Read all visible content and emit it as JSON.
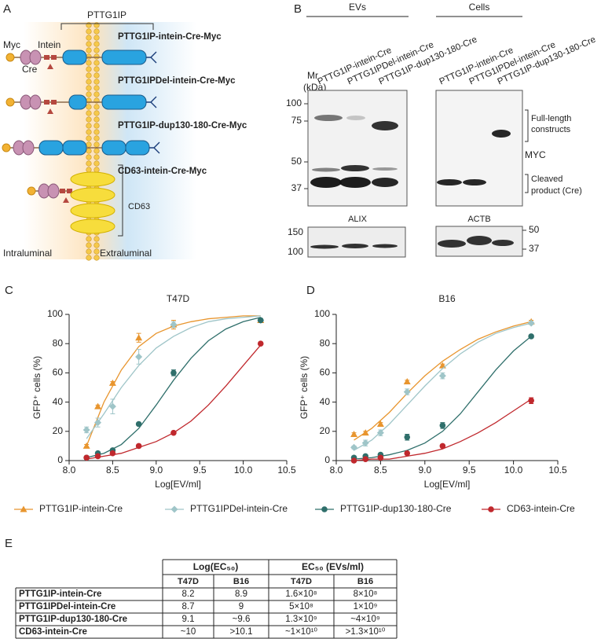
{
  "panel_labels": [
    "A",
    "B",
    "C",
    "D",
    "E"
  ],
  "diagram": {
    "title": "PTTG1IP",
    "tag_myc": "Myc",
    "tag_intein": "Intein",
    "tag_cre": "Cre",
    "constructs": [
      {
        "label": "PTTG1IP-intein-Cre-Myc",
        "color": "#e8952e"
      },
      {
        "label": "PTTG1IPDel-intein-Cre-Myc",
        "color": "#9fc5c8"
      },
      {
        "label": "PTTG1IP-dup130-180-Cre-Myc",
        "color": "#2f6f6b"
      },
      {
        "label": "CD63-intein-Cre-Myc",
        "color": "#c0282d"
      }
    ],
    "cd63": "CD63",
    "intraluminal": "Intraluminal",
    "extraluminal": "Extraluminal"
  },
  "blot": {
    "evs": {
      "title": "EVs",
      "lanes": [
        {
          "label": "PTTG1IP-intein-Cre",
          "color": "#e8952e"
        },
        {
          "label": "PTTG1IPDel-intein-Cre",
          "color": "#9fc5c8"
        },
        {
          "label": "PTTG1IP-dup130-180-Cre",
          "color": "#2f6f6b"
        }
      ]
    },
    "cells": {
      "title": "Cells",
      "lanes": [
        {
          "label": "PTTG1IP-intein-Cre",
          "color": "#e8952e"
        },
        {
          "label": "PTTG1IPDel-intein-Cre",
          "color": "#9fc5c8"
        },
        {
          "label": "PTTG1IP-dup130-180-Cre",
          "color": "#2f6f6b"
        }
      ]
    },
    "mr_label": [
      "Mr",
      "(kDa)"
    ],
    "markers": [
      100,
      75,
      50,
      37
    ],
    "full_length": [
      "Full-length",
      "constructs"
    ],
    "myc": "MYC",
    "cleaved": [
      "Cleaved",
      "product (Cre)"
    ],
    "alix": "ALIX",
    "alix_markers": [
      150,
      100
    ],
    "actb": "ACTB",
    "actb_markers": [
      50,
      37
    ]
  },
  "chart_data": [
    {
      "type": "scatter",
      "title": "T47D",
      "x_label": "Log[EV/ml]",
      "y_label": "GFP⁺ cells (%)",
      "x": [
        8.2,
        8.33,
        8.5,
        8.8,
        9.2,
        10.2
      ],
      "fit_x": [
        8.2,
        8.4,
        8.6,
        8.8,
        9.0,
        9.2,
        9.4,
        9.6,
        9.8,
        10.0,
        10.2
      ],
      "xlim": [
        8.0,
        10.5
      ],
      "xticks": [
        {
          "value": 8,
          "label": "8.0"
        },
        8.5,
        {
          "value": 9,
          "label": "9.0"
        },
        9.5,
        {
          "value": 10,
          "label": "10.0"
        },
        10.5
      ],
      "ylim": [
        0,
        100
      ],
      "yticks": [
        0,
        20,
        40,
        60,
        80,
        100
      ],
      "series": [
        {
          "name": "PTTG1IP-intein-Cre",
          "color": "#e8952e",
          "marker": "triangle",
          "values": [
            10,
            37,
            53,
            84,
            93,
            96
          ],
          "errors": [
            1,
            1,
            1,
            3,
            3,
            1
          ],
          "fit": [
            10,
            40,
            62,
            78,
            87,
            92,
            95,
            97,
            98,
            99,
            99
          ]
        },
        {
          "name": "PTTG1IPDel-intein-Cre",
          "color": "#9fc5c8",
          "marker": "diamond",
          "values": [
            21,
            26,
            37,
            71,
            93,
            96
          ],
          "errors": [
            2,
            3,
            5,
            5,
            2,
            1
          ],
          "fit": [
            15,
            32,
            50,
            65,
            77,
            85,
            91,
            95,
            97,
            98,
            99
          ]
        },
        {
          "name": "PTTG1IP-dup130-180-Cre",
          "color": "#2f6f6b",
          "marker": "circle",
          "values": [
            2,
            5,
            7,
            25,
            60,
            96
          ],
          "errors": [
            1,
            1,
            1,
            1,
            2,
            1
          ],
          "fit": [
            2,
            5,
            11,
            22,
            38,
            55,
            70,
            82,
            90,
            95,
            98
          ]
        },
        {
          "name": "CD63-intein-Cre",
          "color": "#c0282d",
          "marker": "circle",
          "values": [
            2,
            3,
            5,
            10,
            19,
            80
          ],
          "errors": [
            1,
            1,
            1,
            1,
            1,
            1
          ],
          "fit": [
            1,
            3,
            5,
            9,
            13,
            19,
            27,
            38,
            51,
            65,
            79
          ]
        }
      ]
    },
    {
      "type": "scatter",
      "title": "B16",
      "x_label": "Log[EV/ml]",
      "y_label": "GFP⁺ cells (%)",
      "x": [
        8.2,
        8.33,
        8.5,
        8.8,
        9.2,
        10.2
      ],
      "fit_x": [
        8.2,
        8.4,
        8.6,
        8.8,
        9.0,
        9.2,
        9.4,
        9.6,
        9.8,
        10.0,
        10.2
      ],
      "xlim": [
        8.0,
        10.5
      ],
      "xticks": [
        {
          "value": 8,
          "label": "8.0"
        },
        8.5,
        {
          "value": 9,
          "label": "9.0"
        },
        9.5,
        {
          "value": 10,
          "label": "10.0"
        },
        10.5
      ],
      "ylim": [
        0,
        100
      ],
      "yticks": [
        0,
        20,
        40,
        60,
        80,
        100
      ],
      "series": [
        {
          "color": "#e8952e",
          "marker": "triangle",
          "values": [
            18,
            19,
            25,
            54,
            65,
            95
          ],
          "errors": [
            1,
            1,
            1,
            1,
            1,
            1
          ],
          "fit": [
            14,
            22,
            33,
            46,
            58,
            68,
            76,
            83,
            88,
            92,
            95
          ]
        },
        {
          "color": "#9fc5c8",
          "marker": "diamond",
          "values": [
            9,
            12,
            19,
            47,
            58,
            94
          ],
          "errors": [
            1,
            2,
            2,
            2,
            2,
            1
          ],
          "fit": [
            7,
            14,
            25,
            38,
            51,
            63,
            73,
            81,
            87,
            91,
            94
          ]
        },
        {
          "color": "#2f6f6b",
          "marker": "circle",
          "values": [
            2,
            3,
            4,
            16,
            24,
            85
          ],
          "errors": [
            1,
            1,
            1,
            2,
            2,
            1
          ],
          "fit": [
            1,
            2,
            4,
            7,
            12,
            20,
            32,
            47,
            62,
            75,
            85
          ]
        },
        {
          "color": "#c0282d",
          "marker": "circle",
          "values": [
            0,
            1,
            2,
            5,
            10,
            41
          ],
          "errors": [
            1,
            1,
            1,
            1,
            1,
            2
          ],
          "fit": [
            0,
            1,
            1,
            3,
            5,
            8,
            13,
            19,
            26,
            34,
            42
          ]
        }
      ]
    }
  ],
  "table": {
    "group_headers": [
      "Log(EC₅₀)",
      "EC₅₀ (EVs/ml)"
    ],
    "sub_headers": [
      "T47D",
      "B16",
      "T47D",
      "B16"
    ],
    "rows": [
      [
        "PTTG1IP-intein-Cre",
        "8.2",
        "8.9",
        "1.6×10⁸",
        "8×10⁸"
      ],
      [
        "PTTG1IPDel-intein-Cre",
        "8.7",
        "9",
        "5×10⁸",
        "1×10⁹"
      ],
      [
        "PTTG1IP-dup130-180-Cre",
        "9.1",
        "~9.6",
        "1.3×10⁹",
        "~4×10⁹"
      ],
      [
        "CD63-intein-Cre",
        "~10",
        ">10.1",
        "~1×10¹⁰",
        ">1.3×10¹⁰"
      ]
    ]
  }
}
